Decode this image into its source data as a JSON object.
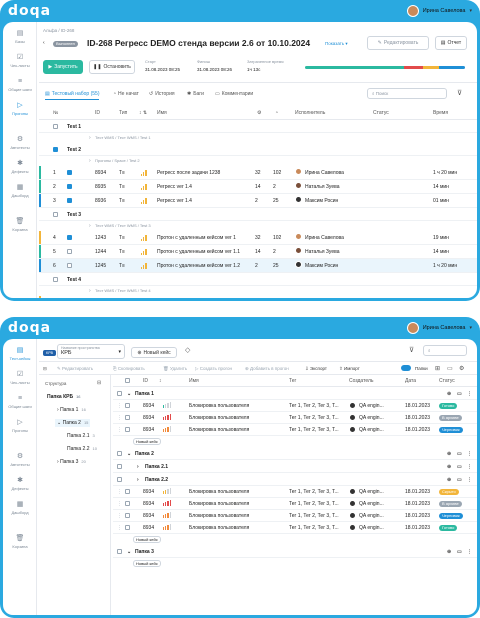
{
  "logo": "doqa",
  "user_name": "Ирина Савелова",
  "sidebar": [
    {
      "label": "Базы",
      "icon": "database-icon",
      "glyph": "▤"
    },
    {
      "label": "Чек-листы",
      "icon": "checklist-icon",
      "glyph": "☑"
    },
    {
      "label": "Общие шаги",
      "icon": "steps-icon",
      "glyph": "≡"
    },
    {
      "label": "Прогоны",
      "icon": "play-icon",
      "glyph": "▷"
    },
    {
      "label": "Автотесты",
      "icon": "autotest-icon",
      "glyph": "⚙"
    },
    {
      "label": "Дефекты",
      "icon": "bug-icon",
      "glyph": "✱"
    },
    {
      "label": "Дашборд",
      "icon": "dashboard-icon",
      "glyph": "▦"
    },
    {
      "label": "Корзина",
      "icon": "trash-icon",
      "glyph": "🗑"
    }
  ],
  "sidebar2": [
    {
      "label": "Тест-кейсы",
      "icon": "testcase-icon",
      "glyph": "▤"
    },
    {
      "label": "Чек-листы",
      "icon": "checklist-icon",
      "glyph": "☑"
    },
    {
      "label": "Общие шаги",
      "icon": "steps-icon",
      "glyph": "≡"
    },
    {
      "label": "Прогоны",
      "icon": "play-icon",
      "glyph": "▷"
    },
    {
      "label": "Автотесты",
      "icon": "autotest-icon",
      "glyph": "⚙"
    },
    {
      "label": "Дефекты",
      "icon": "bug-icon",
      "glyph": "✱"
    },
    {
      "label": "Дашборд",
      "icon": "dashboard-icon",
      "glyph": "▦"
    },
    {
      "label": "Корзина",
      "icon": "trash-icon",
      "glyph": "🗑"
    }
  ],
  "run": {
    "breadcrumb": "Альфа / ID-268",
    "status_badge": "Выполнен",
    "title": "ID-268 Регресс DEMO стенда версии 2.6 от 10.10.2024",
    "show_label": "Показать",
    "edit_label": "Редактировать",
    "report_label": "Отчет",
    "start_label": "Запустить",
    "stop_label": "Остановить",
    "start_time_label": "Старт",
    "start_time": "31.08.2023 08:25",
    "finish_label": "Финиш",
    "finish_time": "31.08.2023 08:26",
    "spent_label": "Затраченное время",
    "spent": "1ч 13с",
    "progress": [
      {
        "color": "#2bb9a0",
        "share": 0.62
      },
      {
        "color": "#e24b4b",
        "share": 0.12
      },
      {
        "color": "#f2b53a",
        "share": 0.1
      },
      {
        "color": "#1f8fd6",
        "share": 0.16
      }
    ],
    "tabs": [
      "Тестовый набор (55)",
      "Не начат",
      "История",
      "Баги",
      "Комментарии"
    ],
    "search_placeholder": "Поиск",
    "columns": [
      "№",
      "ID",
      "Тип",
      "Имя",
      "Исполнитель",
      "Статус",
      "Время"
    ],
    "rows": [
      {
        "kind": "group",
        "num": "",
        "name": "Test 1"
      },
      {
        "kind": "path",
        "name": "Тест WMS / Тест WMS / Test 1"
      },
      {
        "kind": "group",
        "num": "",
        "name": "Test 2"
      },
      {
        "kind": "path",
        "name": "Прогоны / Space / Test 2"
      },
      {
        "kind": "item",
        "num": "1",
        "id": "8934",
        "name": "Регресс после задачи 1238",
        "a": "32",
        "b": "102",
        "user": "Ирина Савелова",
        "time": "1 ч 20 мин",
        "mark": "#2bb9a0",
        "checked": true
      },
      {
        "kind": "item",
        "num": "2",
        "id": "8935",
        "name": "Регресс ver 1.4",
        "a": "14",
        "b": "2",
        "user": "Наталья Зуева",
        "time": "14 мин",
        "mark": "#2bb9a0",
        "checked": true
      },
      {
        "kind": "item",
        "num": "3",
        "id": "8936",
        "name": "Регресс ver 1.4",
        "a": "2",
        "b": "25",
        "user": "Максим Росин",
        "time": "01 мин",
        "mark": "#1f8fd6",
        "checked": true
      },
      {
        "kind": "group",
        "num": "",
        "name": "Test 3"
      },
      {
        "kind": "path",
        "name": "Тест WMS / Тест WMS / Test 3"
      },
      {
        "kind": "item",
        "num": "4",
        "id": "1243",
        "name": "Протон с удаленным кейсом ver 1",
        "a": "32",
        "b": "102",
        "user": "Ирина Савелова",
        "time": "19 мин",
        "mark": "#f2b53a",
        "checked": true
      },
      {
        "kind": "item",
        "num": "5",
        "id": "1244",
        "name": "Протон с удаленным кейсом ver 1.1",
        "a": "14",
        "b": "2",
        "user": "Наталья Зуева",
        "time": "14 мин",
        "mark": "#2bb9a0",
        "checked": false
      },
      {
        "kind": "item",
        "num": "6",
        "id": "1245",
        "name": "Протон с удаленным кейсом ver 1.2",
        "a": "2",
        "b": "25",
        "user": "Максим Росин",
        "time": "1 ч 20 мин",
        "mark": "#1f8fd6",
        "checked": false,
        "hl": true
      },
      {
        "kind": "group",
        "num": "",
        "name": "Test 4"
      },
      {
        "kind": "path",
        "name": "Тест WMS / Тест WMS / Test 4"
      },
      {
        "kind": "item",
        "num": "7",
        "id": "5164",
        "name": "Протон по длинным ТК и ЧЛ",
        "a": "32",
        "b": "102",
        "user": "Ирина Савелова",
        "time": "19 мин",
        "mark": "#f2b53a",
        "checked": false
      },
      {
        "kind": "item",
        "num": "8",
        "id": "5165",
        "name": "Протон по длинным ТК и ЧЛ ver 1",
        "a": "14",
        "b": "2",
        "user": "Василий Геннадьевич",
        "time": "14 мин",
        "mark": "#2bb9a0",
        "checked": false
      }
    ]
  },
  "cases": {
    "project_label": "Название пространства",
    "project_tag": "KPB",
    "project": "КРБ",
    "new_case": "Новый кейс",
    "toolbar": [
      "Редактировать",
      "Скопировать",
      "Удалить",
      "Создать прогон",
      "Добавить в прогон",
      "Экспорт",
      "Импорт"
    ],
    "folders_toggle": "Папки",
    "structure_label": "Структура",
    "tree": [
      {
        "name": "Папка КРБ",
        "count": "16",
        "level": 0
      },
      {
        "name": "Папка 1",
        "count": "16",
        "level": 1
      },
      {
        "name": "Папка 2",
        "count": "15",
        "level": 1,
        "hl": true
      },
      {
        "name": "Папка 2.1",
        "count": "3",
        "level": 2
      },
      {
        "name": "Папка 2.2",
        "count": "10",
        "level": 2
      },
      {
        "name": "Папка 3",
        "count": "20",
        "level": 1
      }
    ],
    "columns": [
      "ID",
      "Имя",
      "Тег",
      "Создатель",
      "Дата",
      "Статус"
    ],
    "rows": [
      {
        "kind": "folder",
        "name": "Папка 1"
      },
      {
        "kind": "case",
        "id": "8934",
        "name": "Блокировка пользователя",
        "tags": "Тег 1, Тег 2, Тег 3, Т...",
        "creator": "QA engin...",
        "date": "18.01.2023",
        "status": "Готово",
        "color": "#2bb9a0",
        "prio": 1
      },
      {
        "kind": "case",
        "id": "8934",
        "name": "Блокировка пользователя",
        "tags": "Тег 1, Тег 2, Тег 3, Т...",
        "creator": "QA engin...",
        "date": "18.01.2023",
        "status": "В архиве",
        "color": "#9aa6b2",
        "prio": 4
      },
      {
        "kind": "case",
        "id": "8934",
        "name": "Блокировка пользователя",
        "tags": "Тег 1, Тег 2, Тег 3, Т...",
        "creator": "QA engin...",
        "date": "18.01.2023",
        "status": "Черновик",
        "color": "#1f8fd6",
        "prio": 3
      },
      {
        "kind": "add",
        "name": "Новый кейс"
      },
      {
        "kind": "folder",
        "name": "Папка 2"
      },
      {
        "kind": "sub",
        "name": "Папка 2.1"
      },
      {
        "kind": "sub",
        "name": "Папка 2.2"
      },
      {
        "kind": "case",
        "id": "8934",
        "name": "Блокировка пользователя",
        "tags": "Тег 1, Тег 2, Тег 3, Т...",
        "creator": "QA engin...",
        "date": "18.01.2023",
        "status": "Скрыто",
        "color": "#f2b53a",
        "prio": 2
      },
      {
        "kind": "case",
        "id": "8934",
        "name": "Блокировка пользователя",
        "tags": "Тег 1, Тег 2, Тег 3, Т...",
        "creator": "QA engin...",
        "date": "18.01.2023",
        "status": "В архиве",
        "color": "#9aa6b2",
        "prio": 4
      },
      {
        "kind": "case",
        "id": "8934",
        "name": "Блокировка пользователя",
        "tags": "Тег 1, Тег 2, Тег 3, Т...",
        "creator": "QA engin...",
        "date": "18.01.2023",
        "status": "Черновик",
        "color": "#1f8fd6",
        "prio": 3
      },
      {
        "kind": "case",
        "id": "8934",
        "name": "Блокировка пользователя",
        "tags": "Тег 1, Тег 2, Тег 3, Т...",
        "creator": "QA engin...",
        "date": "18.01.2023",
        "status": "Готово",
        "color": "#2bb9a0",
        "prio": 3
      },
      {
        "kind": "add",
        "name": "Новый кейс"
      },
      {
        "kind": "folder",
        "name": "Папка 3"
      },
      {
        "kind": "add",
        "name": "Новый кейс"
      }
    ]
  }
}
